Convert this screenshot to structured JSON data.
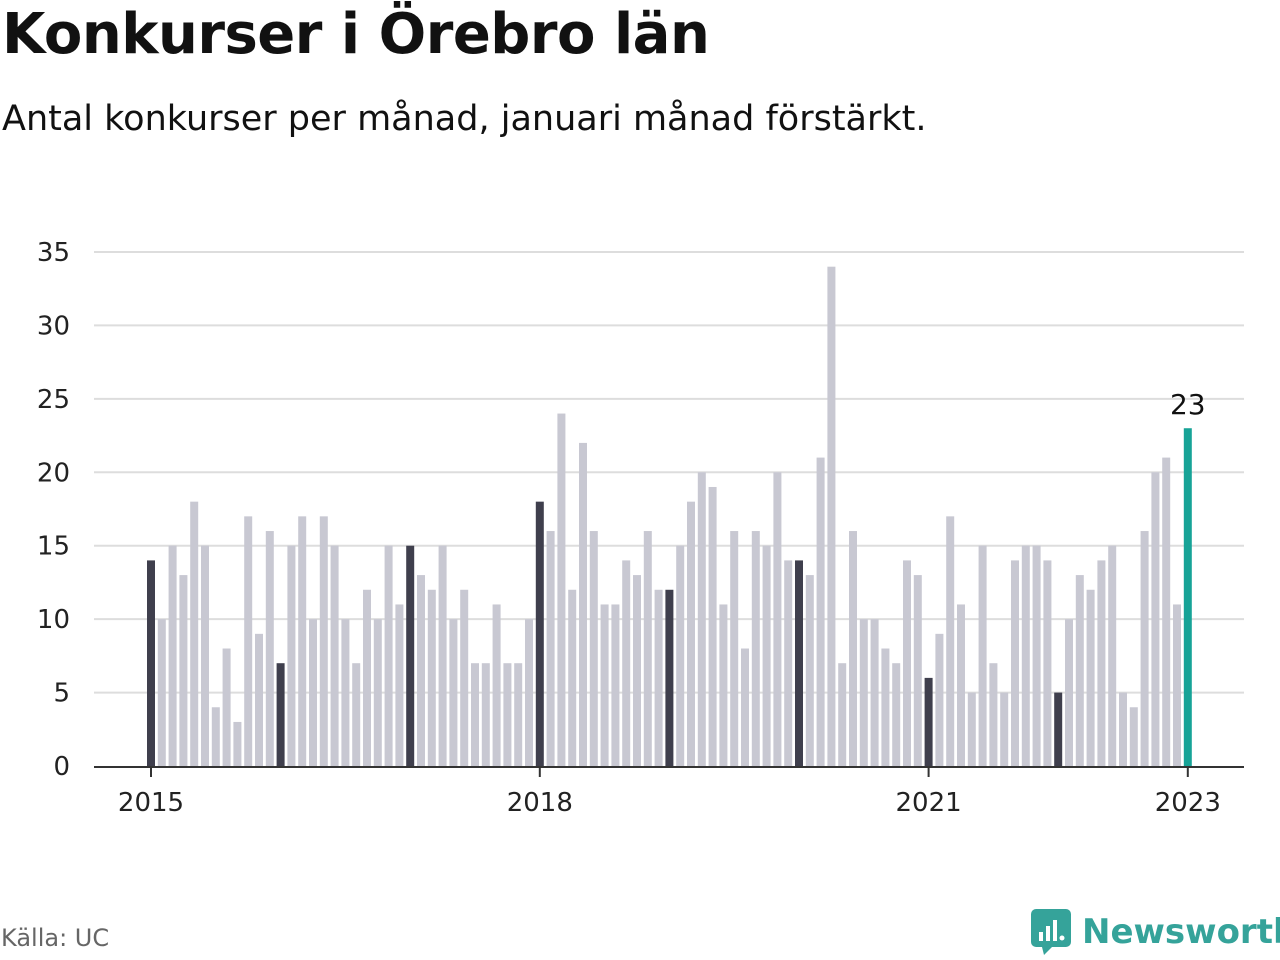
{
  "header": {
    "title": "Konkurser i Örebro län",
    "subtitle": "Antal konkurser per månad, januari månad förstärkt."
  },
  "footer": {
    "source": "Källa: UC",
    "brand": "Newsworthy",
    "brand_icon": "newsworthy-logo-icon"
  },
  "colors": {
    "january": "#3f3f4d",
    "other": "#c8c8d2",
    "latest": "#17a397",
    "grid": "#dddddd",
    "axis": "#333333",
    "brand": "#35a39a"
  },
  "chart_data": {
    "type": "bar",
    "x_start": "2015-01",
    "ylim": [
      0,
      35
    ],
    "yticks": [
      0,
      5,
      10,
      15,
      20,
      25,
      30,
      35
    ],
    "grid": true,
    "highlight": "januari",
    "xticks": [
      {
        "month_index": 0,
        "label": "2015"
      },
      {
        "month_index": 36,
        "label": "2018"
      },
      {
        "month_index": 72,
        "label": "2021"
      },
      {
        "month_index": 96,
        "label": "2023"
      }
    ],
    "values": [
      14,
      10,
      15,
      13,
      18,
      15,
      4,
      8,
      3,
      17,
      9,
      16,
      7,
      15,
      17,
      10,
      17,
      15,
      10,
      7,
      12,
      10,
      15,
      11,
      15,
      13,
      12,
      15,
      10,
      12,
      7,
      7,
      11,
      7,
      7,
      10,
      18,
      16,
      24,
      12,
      22,
      16,
      11,
      11,
      14,
      13,
      16,
      12,
      12,
      15,
      18,
      20,
      19,
      11,
      16,
      8,
      16,
      15,
      20,
      14,
      14,
      13,
      21,
      34,
      7,
      16,
      10,
      10,
      8,
      7,
      14,
      13,
      6,
      9,
      17,
      11,
      5,
      15,
      7,
      5,
      14,
      15,
      15,
      14,
      5,
      10,
      13,
      12,
      14,
      15,
      5,
      4,
      16,
      20,
      21,
      11,
      23
    ],
    "latest_label": "23"
  }
}
